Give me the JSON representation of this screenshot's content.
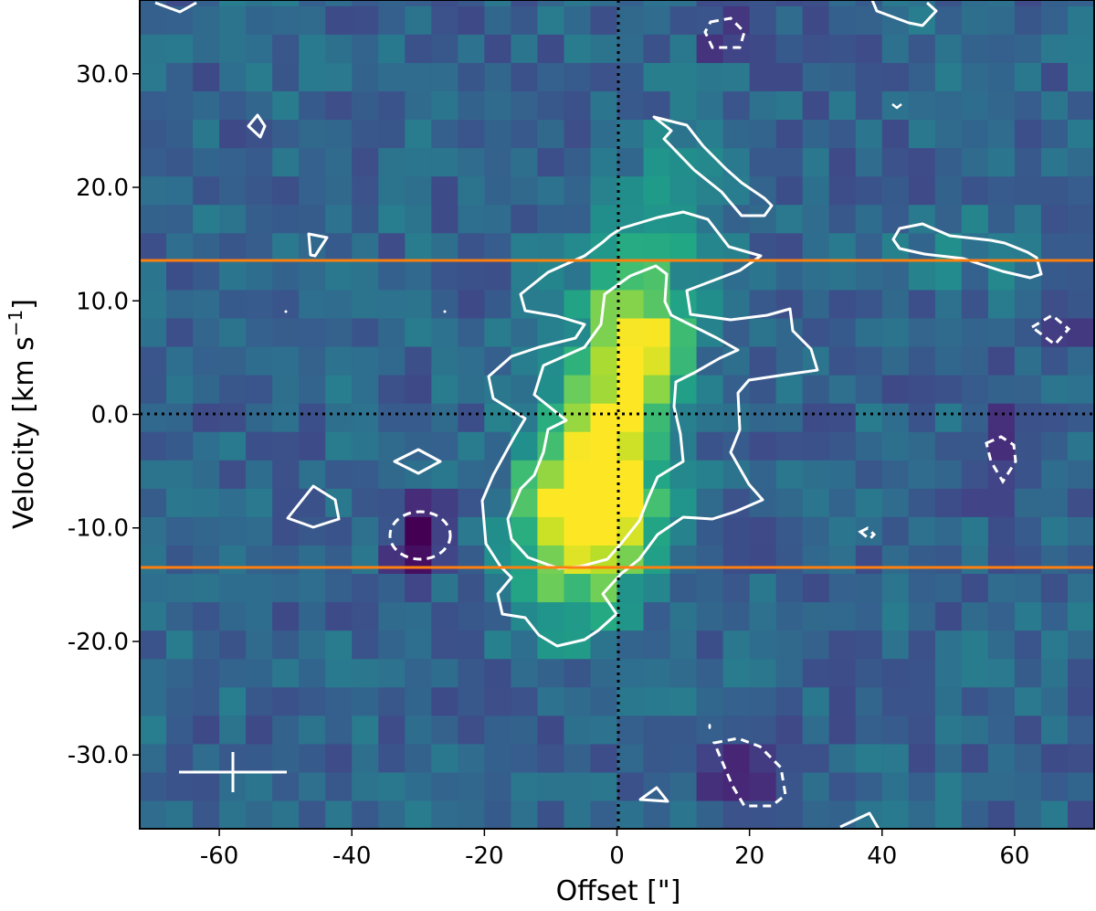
{
  "chart_data": {
    "type": "heatmap",
    "title": "",
    "xlabel": "Offset [\"]",
    "ylabel": "Velocity [km s⁻¹]",
    "ylabel_parts": {
      "main": "Velocity [km s",
      "sup": "−1",
      "close": "]"
    },
    "xlim": [
      -72,
      72
    ],
    "ylim": [
      -36.5,
      36.5
    ],
    "x_ticks": [
      -60,
      -40,
      -20,
      0,
      20,
      40,
      60
    ],
    "x_tick_labels": [
      "-60",
      "-40",
      "-20",
      "0",
      "20",
      "40",
      "60"
    ],
    "y_ticks": [
      30,
      20,
      10,
      0,
      -10,
      -20,
      -30
    ],
    "y_tick_labels": [
      "30.0",
      "20.0",
      "10.0",
      "0.0",
      "-10.0",
      "-20.0",
      "-30.0"
    ],
    "colormap": "viridis",
    "grid": false,
    "legend": null,
    "reference_lines": [
      {
        "orientation": "horizontal",
        "value": 0,
        "style": "dotted",
        "color": "#000000"
      },
      {
        "orientation": "vertical",
        "value": 0,
        "style": "dotted",
        "color": "#000000"
      },
      {
        "orientation": "horizontal",
        "value": 13.6,
        "style": "solid",
        "color": "#ff7f0e"
      },
      {
        "orientation": "horizontal",
        "value": -13.6,
        "style": "solid",
        "color": "#ff7f0e"
      }
    ],
    "emission_peaks": [
      {
        "offset": -6,
        "velocity": -9,
        "note": "brightest (yellow)"
      },
      {
        "offset": 5,
        "velocity": 7,
        "note": "secondary bright"
      },
      {
        "offset": 0,
        "velocity": 2,
        "note": "bright ridge"
      }
    ],
    "contours": {
      "positive_color": "#ffffff",
      "negative_style": "dashed"
    },
    "resolution_marker": {
      "offset": -58,
      "velocity": -31.5,
      "x_halfwidth": 8,
      "y_halfheight": 3.5
    }
  },
  "colors": {
    "contour": "#ffffff",
    "velocity_limits": "#ff7f0e",
    "zero_lines": "#000000"
  }
}
